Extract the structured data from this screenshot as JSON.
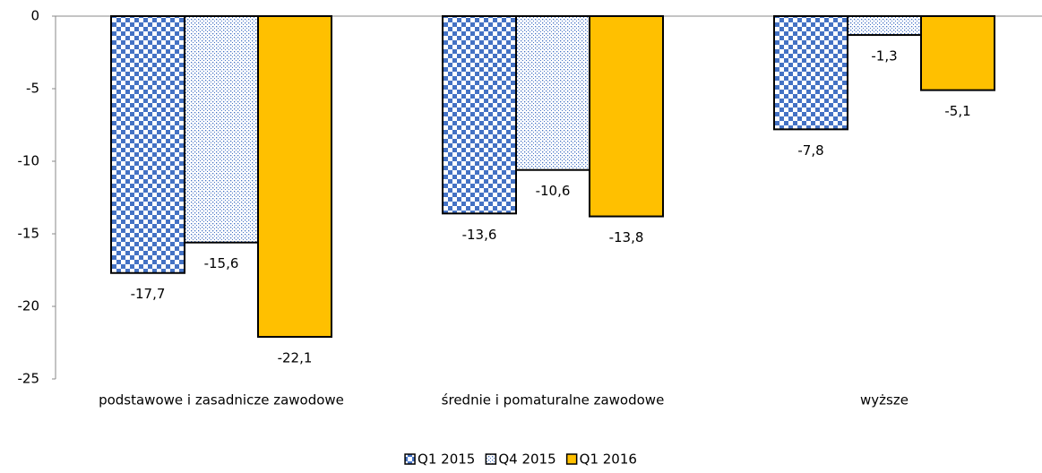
{
  "chart_data": {
    "type": "bar",
    "categories": [
      "podstawowe i zasadnicze zawodowe",
      "średnie i pomaturalne zawodowe",
      "wyższe"
    ],
    "series": [
      {
        "name": "Q1 2015",
        "color": "#4472c4",
        "pattern": "checker",
        "values": [
          -17.7,
          -13.6,
          -7.8
        ],
        "value_labels": [
          "-17,7",
          "-13,6",
          "-7,8"
        ]
      },
      {
        "name": "Q4 2015",
        "color": "#4472c4",
        "pattern": "dots",
        "values": [
          -15.6,
          -10.6,
          -1.3
        ],
        "value_labels": [
          "-15,6",
          "-10,6",
          "-1,3"
        ]
      },
      {
        "name": "Q1 2016",
        "color": "#ffc000",
        "pattern": "solid",
        "values": [
          -22.1,
          -13.8,
          -5.1
        ],
        "value_labels": [
          "-22,1",
          "-13,8",
          "-5,1"
        ]
      }
    ],
    "ylim": [
      -25,
      0
    ],
    "yticks": [
      -25,
      -20,
      -15,
      -10,
      -5,
      0
    ],
    "legend": "bottom"
  }
}
